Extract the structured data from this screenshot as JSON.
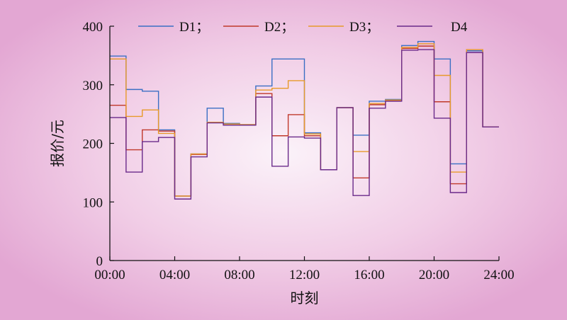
{
  "chart_data": {
    "type": "line",
    "step": true,
    "xlabel": "时刻",
    "ylabel": "报价/元",
    "xlim": [
      0,
      24
    ],
    "ylim": [
      0,
      400
    ],
    "x_ticks": [
      0,
      4,
      8,
      12,
      16,
      20,
      24
    ],
    "x_tick_labels": [
      "00:00",
      "04:00",
      "08:00",
      "12:00",
      "16:00",
      "20:00",
      "24:00"
    ],
    "y_ticks": [
      0,
      100,
      200,
      300,
      400
    ],
    "y_tick_labels": [
      "0",
      "100",
      "200",
      "300",
      "400"
    ],
    "legend_position": "top",
    "grid": false,
    "x": [
      1,
      2,
      3,
      4,
      5,
      6,
      7,
      8,
      9,
      10,
      11,
      12,
      13,
      14,
      15,
      16,
      17,
      18,
      19,
      20,
      21,
      22,
      23,
      24
    ],
    "series": [
      {
        "name": "D1；",
        "color": "#3b6fc4",
        "values": [
          349,
          292,
          289,
          223,
          110,
          182,
          260,
          234,
          232,
          298,
          344,
          344,
          218,
          155,
          261,
          214,
          272,
          275,
          367,
          374,
          344,
          165,
          358,
          228
        ]
      },
      {
        "name": "D2；",
        "color": "#c0392b",
        "values": [
          265,
          189,
          223,
          221,
          110,
          181,
          236,
          233,
          232,
          285,
          213,
          249,
          213,
          155,
          261,
          141,
          266,
          273,
          362,
          366,
          271,
          131,
          355,
          228
        ]
      },
      {
        "name": "D3；",
        "color": "#e79a2a",
        "values": [
          344,
          246,
          257,
          217,
          110,
          182,
          236,
          233,
          232,
          291,
          294,
          307,
          216,
          155,
          261,
          186,
          268,
          274,
          364,
          370,
          316,
          151,
          360,
          228
        ]
      },
      {
        "name": "D4",
        "color": "#6a2a8a",
        "values": [
          244,
          151,
          203,
          210,
          105,
          177,
          235,
          231,
          231,
          279,
          161,
          211,
          209,
          155,
          261,
          111,
          260,
          272,
          359,
          360,
          243,
          116,
          355,
          228
        ]
      }
    ]
  }
}
